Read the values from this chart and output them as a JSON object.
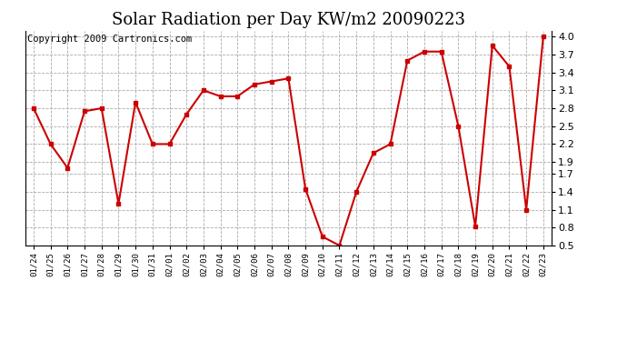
{
  "title": "Solar Radiation per Day KW/m2 20090223",
  "copyright": "Copyright 2009 Cartronics.com",
  "labels": [
    "01/24",
    "01/25",
    "01/26",
    "01/27",
    "01/28",
    "01/29",
    "01/30",
    "01/31",
    "02/01",
    "02/02",
    "02/03",
    "02/04",
    "02/05",
    "02/06",
    "02/07",
    "02/08",
    "02/09",
    "02/10",
    "02/11",
    "02/12",
    "02/13",
    "02/14",
    "02/15",
    "02/16",
    "02/17",
    "02/18",
    "02/19",
    "02/20",
    "02/21",
    "02/22",
    "02/23"
  ],
  "values": [
    2.8,
    2.2,
    1.8,
    2.75,
    2.8,
    1.2,
    2.9,
    2.2,
    2.2,
    2.7,
    3.1,
    3.0,
    3.0,
    3.2,
    3.25,
    3.3,
    1.45,
    0.65,
    0.5,
    1.4,
    2.05,
    2.2,
    3.6,
    3.75,
    3.75,
    2.5,
    0.82,
    3.85,
    3.5,
    1.1,
    4.0
  ],
  "line_color": "#cc0000",
  "marker": "s",
  "marker_size": 3,
  "bg_color": "#ffffff",
  "plot_bg_color": "#ffffff",
  "grid_color": "#aaaaaa",
  "grid_style": "--",
  "ylim": [
    0.5,
    4.1
  ],
  "yticks": [
    0.5,
    0.8,
    1.1,
    1.4,
    1.7,
    1.9,
    2.2,
    2.5,
    2.8,
    3.1,
    3.4,
    3.7,
    4.0
  ],
  "title_fontsize": 13,
  "copyright_fontsize": 7.5
}
